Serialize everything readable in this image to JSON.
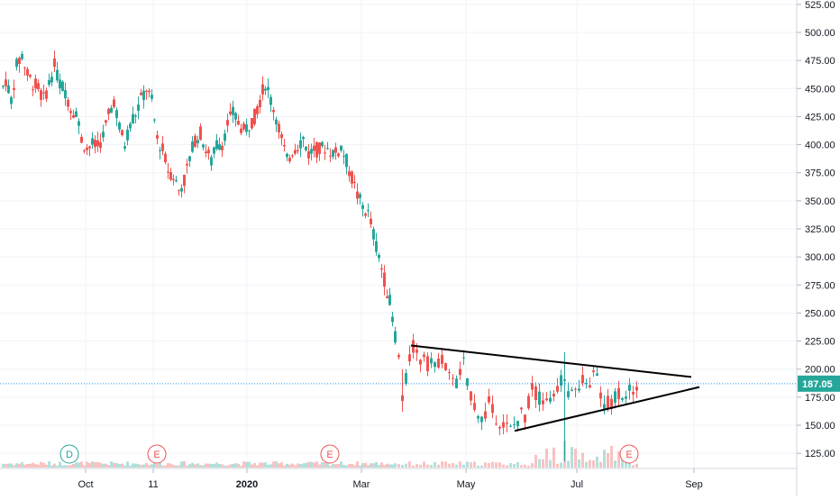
{
  "chart_data": {
    "type": "candlestick",
    "title": "",
    "price_scale": {
      "ticks": [
        "525.00",
        "500.00",
        "475.00",
        "450.00",
        "425.00",
        "400.00",
        "375.00",
        "350.00",
        "325.00",
        "300.00",
        "275.00",
        "250.00",
        "225.00",
        "200.00",
        "175.00",
        "150.00",
        "125.00"
      ],
      "range": [
        112,
        528
      ]
    },
    "time_scale": {
      "labels": [
        "Oct",
        "11",
        "2020",
        "Mar",
        "May",
        "Jul",
        "Sep"
      ],
      "bold_labels": [
        "2020"
      ]
    },
    "last_price": {
      "label": "187.05",
      "value": 187.05
    },
    "candles_close_path": [
      [
        0,
        445
      ],
      [
        6,
        458
      ],
      [
        12,
        440
      ],
      [
        18,
        470
      ],
      [
        24,
        480
      ],
      [
        30,
        462
      ],
      [
        36,
        455
      ],
      [
        42,
        450
      ],
      [
        48,
        440
      ],
      [
        54,
        455
      ],
      [
        60,
        470
      ],
      [
        66,
        455
      ],
      [
        72,
        448
      ],
      [
        78,
        432
      ],
      [
        84,
        430
      ],
      [
        90,
        405
      ],
      [
        96,
        396
      ],
      [
        102,
        400
      ],
      [
        108,
        398
      ],
      [
        114,
        408
      ],
      [
        120,
        425
      ],
      [
        126,
        440
      ],
      [
        132,
        415
      ],
      [
        138,
        400
      ],
      [
        144,
        420
      ],
      [
        150,
        428
      ],
      [
        156,
        440
      ],
      [
        162,
        450
      ],
      [
        168,
        438
      ],
      [
        174,
        405
      ],
      [
        180,
        395
      ],
      [
        186,
        378
      ],
      [
        192,
        372
      ],
      [
        198,
        360
      ],
      [
        204,
        368
      ],
      [
        210,
        388
      ],
      [
        216,
        405
      ],
      [
        222,
        410
      ],
      [
        228,
        395
      ],
      [
        234,
        385
      ],
      [
        240,
        400
      ],
      [
        246,
        402
      ],
      [
        252,
        418
      ],
      [
        258,
        428
      ],
      [
        264,
        420
      ],
      [
        270,
        412
      ],
      [
        276,
        418
      ],
      [
        282,
        425
      ],
      [
        288,
        440
      ],
      [
        294,
        455
      ],
      [
        300,
        440
      ],
      [
        306,
        425
      ],
      [
        312,
        405
      ],
      [
        318,
        385
      ],
      [
        324,
        395
      ],
      [
        330,
        400
      ],
      [
        336,
        405
      ],
      [
        342,
        392
      ],
      [
        348,
        396
      ],
      [
        354,
        395
      ],
      [
        360,
        398
      ],
      [
        366,
        395
      ],
      [
        372,
        392
      ],
      [
        378,
        398
      ],
      [
        384,
        385
      ],
      [
        390,
        370
      ],
      [
        396,
        355
      ],
      [
        402,
        345
      ],
      [
        408,
        338
      ],
      [
        414,
        320
      ],
      [
        420,
        300
      ],
      [
        426,
        280
      ],
      [
        432,
        260
      ],
      [
        438,
        230
      ],
      [
        442,
        210
      ],
      [
        446,
        175
      ],
      [
        450,
        190
      ],
      [
        454,
        210
      ],
      [
        458,
        220
      ],
      [
        462,
        212
      ],
      [
        466,
        208
      ],
      [
        470,
        215
      ],
      [
        474,
        205
      ],
      [
        478,
        210
      ],
      [
        482,
        200
      ],
      [
        486,
        208
      ],
      [
        490,
        210
      ],
      [
        494,
        200
      ],
      [
        498,
        192
      ],
      [
        502,
        196
      ],
      [
        506,
        188
      ],
      [
        510,
        195
      ],
      [
        514,
        205
      ],
      [
        518,
        185
      ],
      [
        522,
        178
      ],
      [
        526,
        168
      ],
      [
        530,
        162
      ],
      [
        534,
        155
      ],
      [
        538,
        160
      ],
      [
        542,
        170
      ],
      [
        546,
        162
      ],
      [
        550,
        158
      ],
      [
        554,
        154
      ],
      [
        558,
        150
      ],
      [
        562,
        148
      ],
      [
        566,
        146
      ],
      [
        570,
        150
      ],
      [
        574,
        155
      ],
      [
        578,
        160
      ],
      [
        582,
        158
      ],
      [
        586,
        170
      ],
      [
        590,
        185
      ],
      [
        594,
        178
      ],
      [
        598,
        175
      ],
      [
        602,
        172
      ],
      [
        606,
        170
      ],
      [
        610,
        176
      ],
      [
        614,
        172
      ],
      [
        618,
        185
      ],
      [
        622,
        190
      ],
      [
        626,
        194
      ],
      [
        630,
        180
      ],
      [
        634,
        186
      ],
      [
        638,
        182
      ],
      [
        642,
        178
      ],
      [
        646,
        188
      ],
      [
        650,
        184
      ],
      [
        654,
        190
      ],
      [
        658,
        195
      ],
      [
        662,
        190
      ],
      [
        666,
        178
      ],
      [
        670,
        165
      ],
      [
        674,
        172
      ],
      [
        678,
        168
      ],
      [
        682,
        176
      ],
      [
        686,
        180
      ],
      [
        690,
        178
      ],
      [
        694,
        172
      ],
      [
        698,
        180
      ],
      [
        702,
        183
      ],
      [
        706,
        187.05
      ]
    ],
    "annotations": [
      {
        "type": "trendline",
        "name": "triangle-upper-line",
        "from": {
          "date": "2020-03-20",
          "price": 221
        },
        "to": {
          "date": "2020-09-01",
          "price": 193
        }
      },
      {
        "type": "trendline",
        "name": "triangle-lower-line",
        "from": {
          "date": "2020-05-18",
          "price": 145
        },
        "to": {
          "date": "2020-09-03",
          "price": 184
        }
      }
    ],
    "event_markers": [
      {
        "label": "D",
        "kind": "dividend",
        "color": "#26a69a"
      },
      {
        "label": "E",
        "kind": "earnings",
        "color": "#ef5350"
      },
      {
        "label": "E",
        "kind": "earnings",
        "color": "#ef5350"
      },
      {
        "label": "E",
        "kind": "earnings",
        "color": "#ef5350"
      }
    ],
    "volume_visible": true,
    "colors": {
      "up": "#26a69a",
      "down": "#ef5350",
      "line": "#000000",
      "price_line": "#2196f3",
      "price_label_bg": "#26a69a",
      "axis_text": "#131722",
      "grid": "#f0f3fa"
    }
  }
}
